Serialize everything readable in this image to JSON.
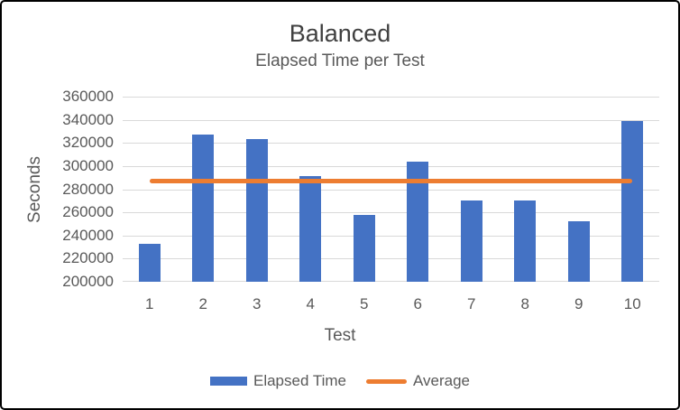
{
  "chart_data": {
    "type": "bar",
    "title": "Balanced",
    "subtitle": "Elapsed Time per Test",
    "xlabel": "Test",
    "ylabel": "Seconds",
    "categories": [
      "1",
      "2",
      "3",
      "4",
      "5",
      "6",
      "7",
      "8",
      "9",
      "10"
    ],
    "series": [
      {
        "name": "Elapsed Time",
        "type": "bar",
        "values": [
          233000,
          327000,
          323000,
          291000,
          258000,
          304000,
          270000,
          270000,
          252000,
          339000
        ]
      },
      {
        "name": "Average",
        "type": "line",
        "value": 286700
      }
    ],
    "ylim": [
      200000,
      360000
    ],
    "yticks": [
      360000,
      340000,
      320000,
      300000,
      280000,
      260000,
      240000,
      220000,
      200000
    ],
    "ytick_step": 20000,
    "grid": true,
    "legend_position": "bottom",
    "colors": {
      "bar": "#4472C4",
      "line": "#ED7D31",
      "gridline": "#D9D9D9",
      "axis_line": "#D9D9D9",
      "title_text": "#404040",
      "label_text": "#595959",
      "background": "#FFFFFF",
      "border": "#000000"
    }
  }
}
